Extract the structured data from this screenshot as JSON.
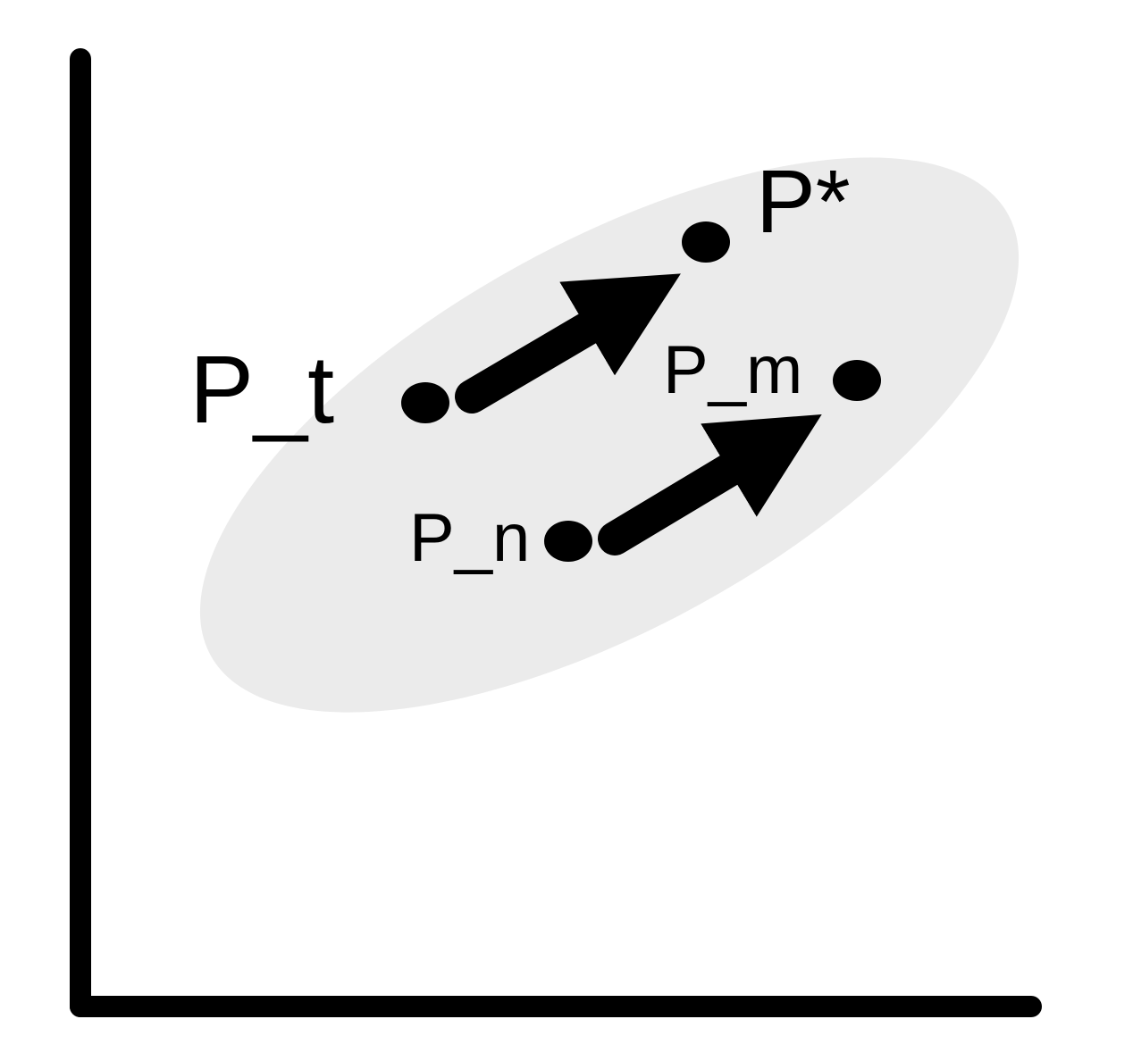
{
  "diagram": {
    "points": {
      "p_t": {
        "label": "P_t"
      },
      "p_star": {
        "label": "P*"
      },
      "p_m": {
        "label": "P_m"
      },
      "p_n": {
        "label": "P_n"
      }
    },
    "colors": {
      "ellipse_fill": "#ebebeb",
      "ink": "#000000",
      "background": "#ffffff"
    }
  }
}
